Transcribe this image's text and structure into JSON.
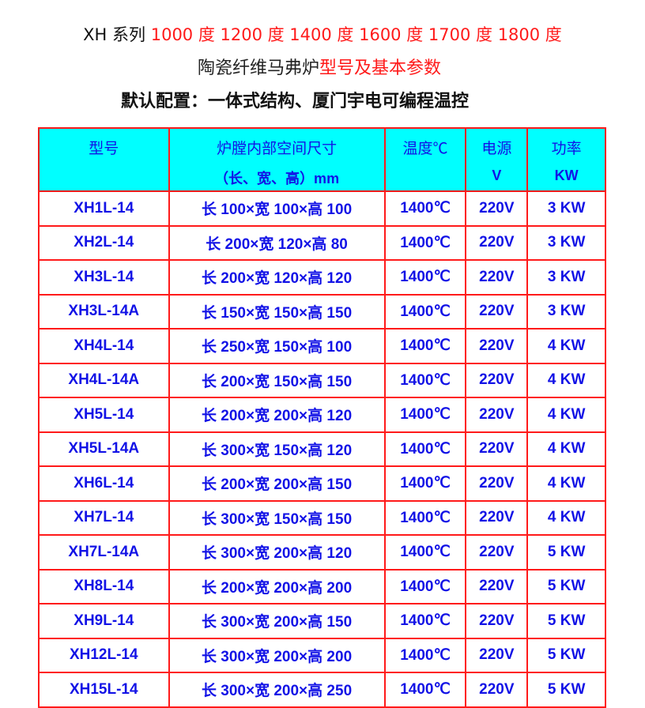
{
  "title": {
    "prefix": "XH 系列",
    "temps": "1000 度 1200 度 1400 度 1600 度 1700 度 1800 度"
  },
  "subtitle": {
    "black": "陶瓷纤维马弗炉",
    "red": "型号及基本参数"
  },
  "config": "默认配置：一体式结构、厦门宇电可编程温控",
  "colors": {
    "border": "#ff1a1a",
    "header_bg": "#00ffff",
    "text": "#1212e6",
    "title_red": "#ff1a1a"
  },
  "table": {
    "headers": [
      {
        "l1": "型号",
        "l2": ""
      },
      {
        "l1": "炉膛内部空间尺寸",
        "l2": "（长、宽、高）mm"
      },
      {
        "l1": "温度℃",
        "l2": ""
      },
      {
        "l1": "电源",
        "l2": "V"
      },
      {
        "l1": "功率",
        "l2": "KW"
      }
    ],
    "rows": [
      [
        "XH1L-14",
        "长 100×宽 100×高 100",
        "1400℃",
        "220V",
        "3 KW"
      ],
      [
        "XH2L-14",
        "长 200×宽 120×高 80",
        "1400℃",
        "220V",
        "3 KW"
      ],
      [
        "XH3L-14",
        "长 200×宽 120×高 120",
        "1400℃",
        "220V",
        "3 KW"
      ],
      [
        "XH3L-14A",
        "长 150×宽 150×高 150",
        "1400℃",
        "220V",
        "3 KW"
      ],
      [
        "XH4L-14",
        "长 250×宽 150×高 100",
        "1400℃",
        "220V",
        "4 KW"
      ],
      [
        "XH4L-14A",
        "长 200×宽 150×高 150",
        "1400℃",
        "220V",
        "4 KW"
      ],
      [
        "XH5L-14",
        "长 200×宽 200×高 120",
        "1400℃",
        "220V",
        "4 KW"
      ],
      [
        "XH5L-14A",
        "长 300×宽 150×高 120",
        "1400℃",
        "220V",
        "4 KW"
      ],
      [
        "XH6L-14",
        "长 200×宽 200×高 150",
        "1400℃",
        "220V",
        "4 KW"
      ],
      [
        "XH7L-14",
        "长 300×宽 150×高 150",
        "1400℃",
        "220V",
        "4 KW"
      ],
      [
        "XH7L-14A",
        "长 300×宽 200×高 120",
        "1400℃",
        "220V",
        "5 KW"
      ],
      [
        "XH8L-14",
        "长 200×宽 200×高 200",
        "1400℃",
        "220V",
        "5 KW"
      ],
      [
        "XH9L-14",
        "长 300×宽 200×高 150",
        "1400℃",
        "220V",
        "5 KW"
      ],
      [
        "XH12L-14",
        "长 300×宽 200×高 200",
        "1400℃",
        "220V",
        "5 KW"
      ],
      [
        "XH15L-14",
        "长 300×宽 200×高 250",
        "1400℃",
        "220V",
        "5 KW"
      ]
    ]
  }
}
